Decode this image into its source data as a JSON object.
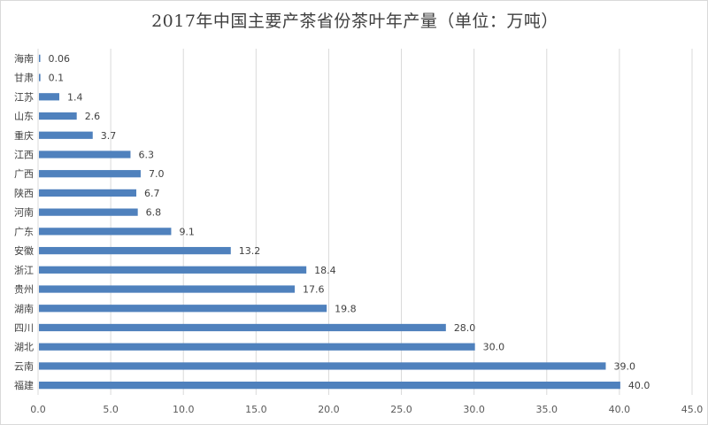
{
  "chart_data": {
    "type": "bar",
    "orientation": "horizontal",
    "title": "2017年中国主要产茶省份茶叶年产量（单位：万吨）",
    "categories": [
      "海南",
      "甘肃",
      "江苏",
      "山东",
      "重庆",
      "江西",
      "广西",
      "陕西",
      "河南",
      "广东",
      "安徽",
      "浙江",
      "贵州",
      "湖南",
      "四川",
      "湖北",
      "云南",
      "福建"
    ],
    "values": [
      0.06,
      0.1,
      1.4,
      2.6,
      3.7,
      6.3,
      7.0,
      6.7,
      6.8,
      9.1,
      13.2,
      18.4,
      17.6,
      19.8,
      28.0,
      30.0,
      39.0,
      40.0
    ],
    "data_labels": [
      "0.06",
      "0.1",
      "1.4",
      "2.6",
      "3.7",
      "6.3",
      "7.0",
      "6.7",
      "6.8",
      "9.1",
      "13.2",
      "18.4",
      "17.6",
      "19.8",
      "28.0",
      "30.0",
      "39.0",
      "40.0"
    ],
    "xlim": [
      0,
      45
    ],
    "x_ticks": [
      "0.0",
      "5.0",
      "10.0",
      "15.0",
      "20.0",
      "25.0",
      "30.0",
      "35.0",
      "40.0",
      "45.0"
    ],
    "xlabel": "",
    "ylabel": "",
    "grid": true,
    "legend": "none",
    "bar_color": "#4f81bd"
  }
}
